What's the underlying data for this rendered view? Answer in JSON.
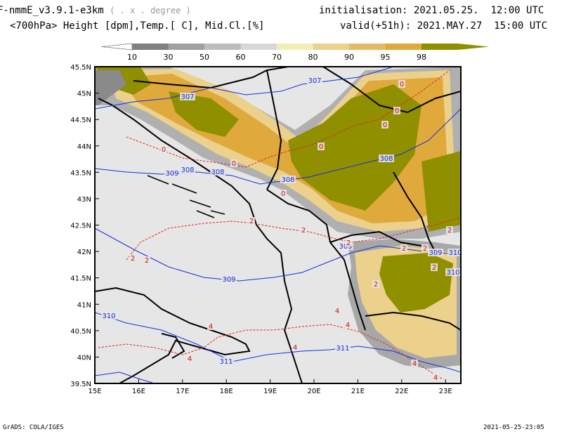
{
  "header": {
    "model": "F-nmmE_v3.9.1-e3km",
    "model_note": "( . x . degree )",
    "variables": "<700hPa> Height [dpm],Temp.[ C], Mid.Cl.[%]",
    "init_label": "initialisation:",
    "init_value": "2021.05.25.  12:00 UTC",
    "valid_label": "valid(+51h):",
    "valid_value": "2021.MAY.27  15:00 UTC"
  },
  "colorbar": {
    "labels": [
      "10",
      "30",
      "50",
      "60",
      "70",
      "80",
      "90",
      "95",
      "98"
    ],
    "colors": [
      "#5a5a5a",
      "#808080",
      "#a0a0a0",
      "#bdbdbd",
      "#d7d7d7",
      "#f3eeb4",
      "#ecd18c",
      "#e3bb66",
      "#dfa93c",
      "#8f8f00"
    ]
  },
  "map": {
    "lat_labels": [
      "45.5N",
      "45N",
      "44.5N",
      "44N",
      "43.5N",
      "43N",
      "42.5N",
      "42N",
      "41.5N",
      "41N",
      "40.5N",
      "40N",
      "39.5N"
    ],
    "lon_labels": [
      "15E",
      "16E",
      "17E",
      "18E",
      "19E",
      "20E",
      "21E",
      "22E",
      "23E"
    ],
    "height_labels": [
      "307",
      "307",
      "308",
      "308",
      "308",
      "308",
      "309",
      "309",
      "309",
      "309",
      "310",
      "310",
      "310",
      "311",
      "311"
    ],
    "temp_labels": [
      "0",
      "0",
      "0",
      "0",
      "0",
      "0",
      "0",
      "2",
      "2",
      "2",
      "2",
      "2",
      "2",
      "2",
      "2",
      "2",
      "2",
      "4",
      "4",
      "4",
      "4",
      "4",
      "4",
      "4"
    ],
    "colors": {
      "sea": "#e6e6e6",
      "cloud_olive": "#8f8f00",
      "cloud_gold": "#dfa93c",
      "cloud_tan": "#ecd18c",
      "height_line": "#1a2fd9",
      "temp_line": "#e02020",
      "coast": "#000000"
    }
  },
  "footer": {
    "left": "GrADS: COLA/IGES",
    "right": "2021-05-25-23:05"
  }
}
